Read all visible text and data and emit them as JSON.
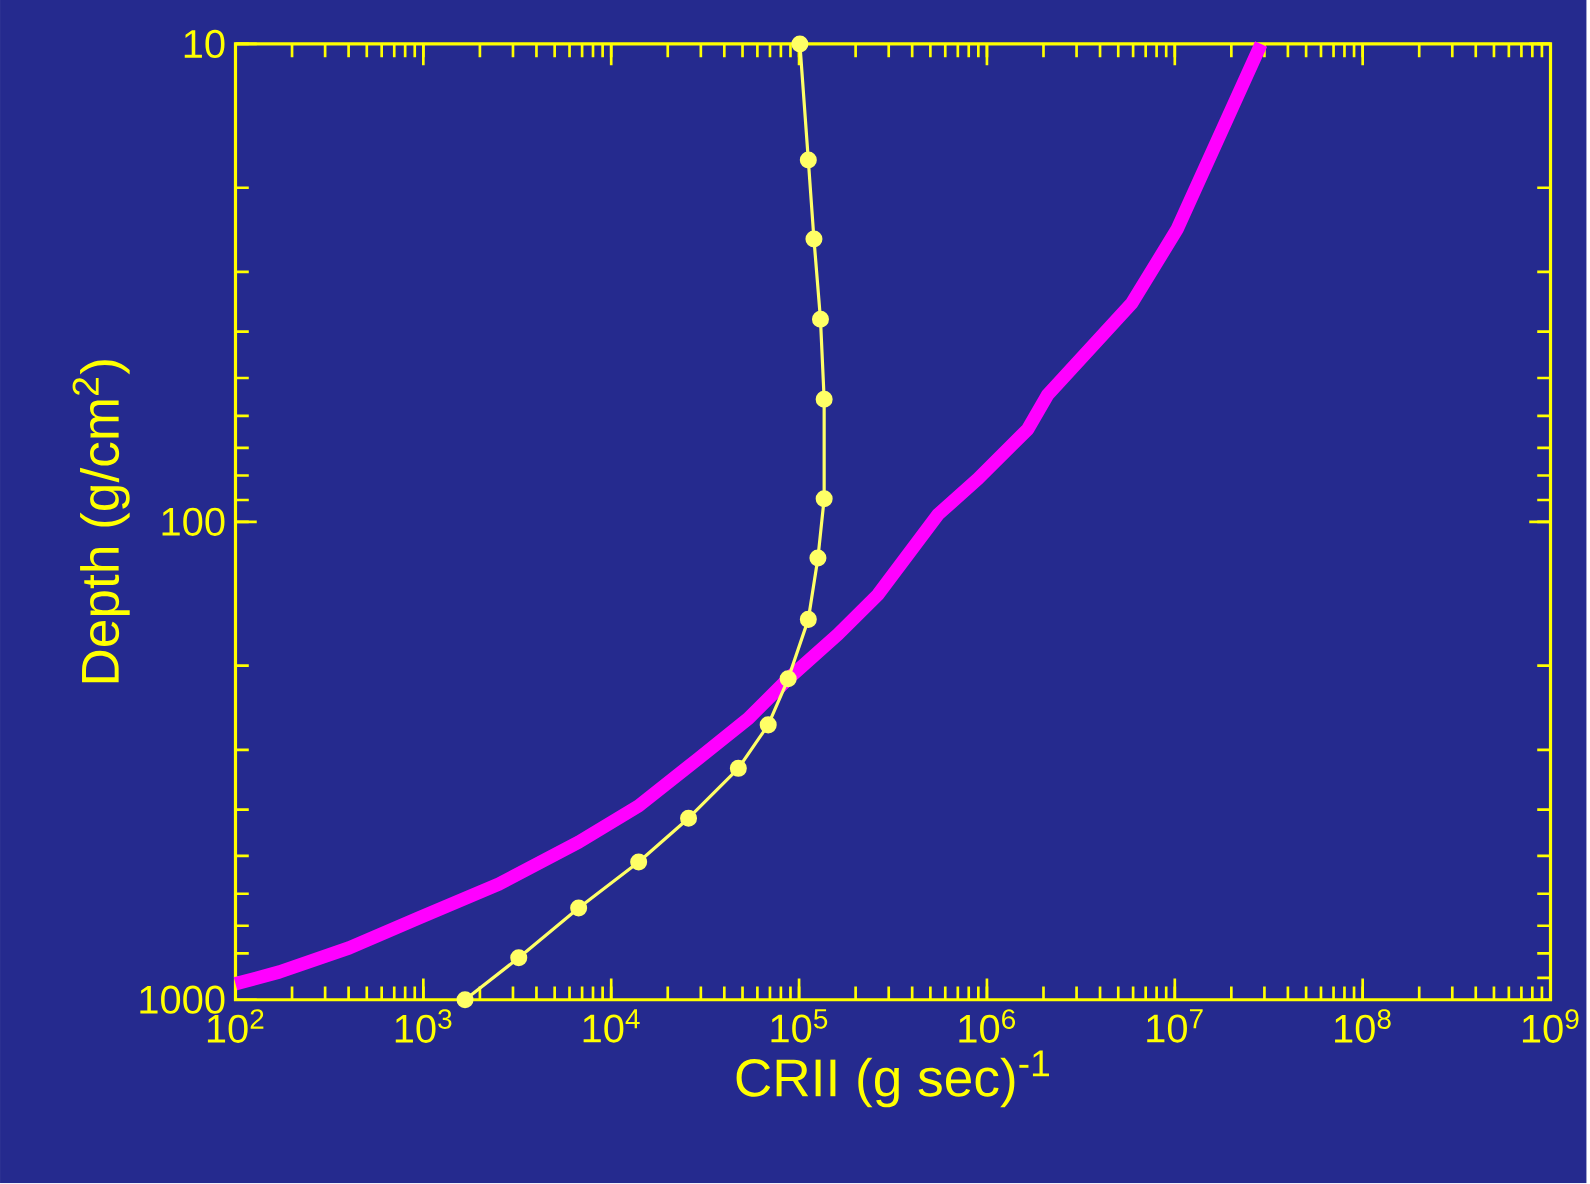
{
  "chart_data": {
    "type": "line",
    "xlabel": "CRII (g sec)$^{-1}$",
    "ylabel": "Depth (g/cm$^{2}$)",
    "log": "xy",
    "xlim": [
      100,
      1000000000
    ],
    "ylim": [
      1000,
      10
    ],
    "xticks": [
      {
        "value": 100,
        "label": "10$^{2}$"
      },
      {
        "value": 1000,
        "label": "10$^{3}$"
      },
      {
        "value": 10000,
        "label": "10$^{4}$"
      },
      {
        "value": 100000,
        "label": "10$^{5}$"
      },
      {
        "value": 1000000,
        "label": "10$^{6}$"
      },
      {
        "value": 10000000,
        "label": "10$^{7}$"
      },
      {
        "value": 100000000,
        "label": "10$^{8}$"
      },
      {
        "value": 1000000000,
        "label": "10$^{9}$"
      }
    ],
    "yticks": [
      10,
      100,
      1000
    ],
    "series": [
      {
        "color": "#ff00ff",
        "marker": "none",
        "x": [
          100,
          171,
          403,
          948,
          2520,
          6710,
          14000,
          29100,
          53700,
          87500,
          161000,
          263000,
          548000,
          895000,
          1650000,
          2100000,
          5900000,
          10300000,
          28800000
        ],
        "values": [
          926,
          875,
          779,
          674,
          573,
          468,
          393,
          313,
          258,
          213,
          172,
          142,
          96.6,
          81.3,
          64,
          54.3,
          34.9,
          24.4,
          10
        ]
      },
      {
        "color": "#ffff66",
        "marker": "circle",
        "x": [
          1667,
          3220,
          6710,
          14000,
          25800,
          47500,
          68500,
          87500,
          112000,
          126000,
          136000,
          136000,
          130000,
          120000,
          112000,
          101000
        ],
        "values": [
          1000,
          817,
          643,
          515,
          417,
          328,
          266,
          213,
          160,
          119,
          89.5,
          55.4,
          37.7,
          25.6,
          17.5,
          10
        ]
      }
    ]
  }
}
